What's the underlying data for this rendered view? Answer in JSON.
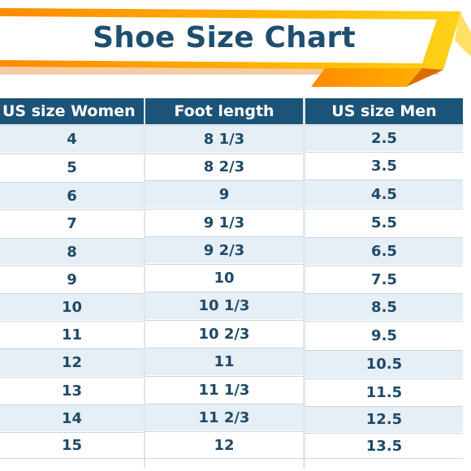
{
  "title": "Shoe Size Chart",
  "colors": {
    "banner_orange": "#ff9a00",
    "banner_yellow": "#ffd21a",
    "title_text": "#1f4f6e",
    "header_bg": "#1c5378",
    "header_text": "#ffffff",
    "cell_text": "#1e4a68",
    "row_shade": "#e6eef6"
  },
  "table": {
    "headers": [
      "US size Women",
      "Foot length",
      "US size Men"
    ],
    "rows": [
      [
        "4",
        "8 1/3",
        "2.5"
      ],
      [
        "5",
        "8 2/3",
        "3.5"
      ],
      [
        "6",
        "9",
        "4.5"
      ],
      [
        "7",
        "9 1/3",
        "5.5"
      ],
      [
        "8",
        "9 2/3",
        "6.5"
      ],
      [
        "9",
        "10",
        "7.5"
      ],
      [
        "10",
        "10 1/3",
        "8.5"
      ],
      [
        "11",
        "10 2/3",
        "9.5"
      ],
      [
        "12",
        "11",
        "10.5"
      ],
      [
        "13",
        "11 1/3",
        "11.5"
      ],
      [
        "14",
        "11 2/3",
        "12.5"
      ],
      [
        "15",
        "12",
        "13.5"
      ]
    ]
  }
}
